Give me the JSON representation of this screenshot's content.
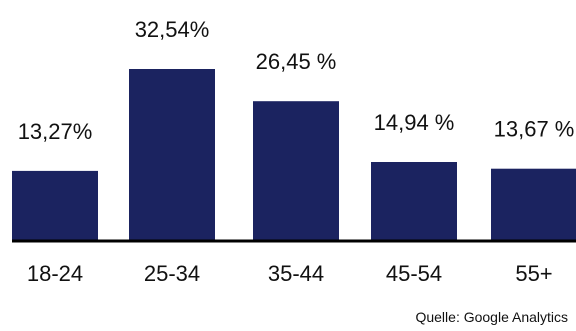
{
  "chart_data": {
    "type": "bar",
    "categories": [
      "18-24",
      "25-34",
      "35-44",
      "45-54",
      "55+"
    ],
    "values": [
      13.27,
      32.54,
      26.45,
      14.94,
      13.67
    ],
    "data_labels": [
      "13,27%",
      "32,54%",
      "26,45 %",
      "14,94 %",
      "13,67 %"
    ],
    "title": "",
    "xlabel": "",
    "ylabel": "",
    "ylim": [
      0,
      32.54
    ],
    "grid": false,
    "bar_color": "#1b2360",
    "baseline_color": "#000000"
  },
  "source": "Quelle: Google Analytics"
}
